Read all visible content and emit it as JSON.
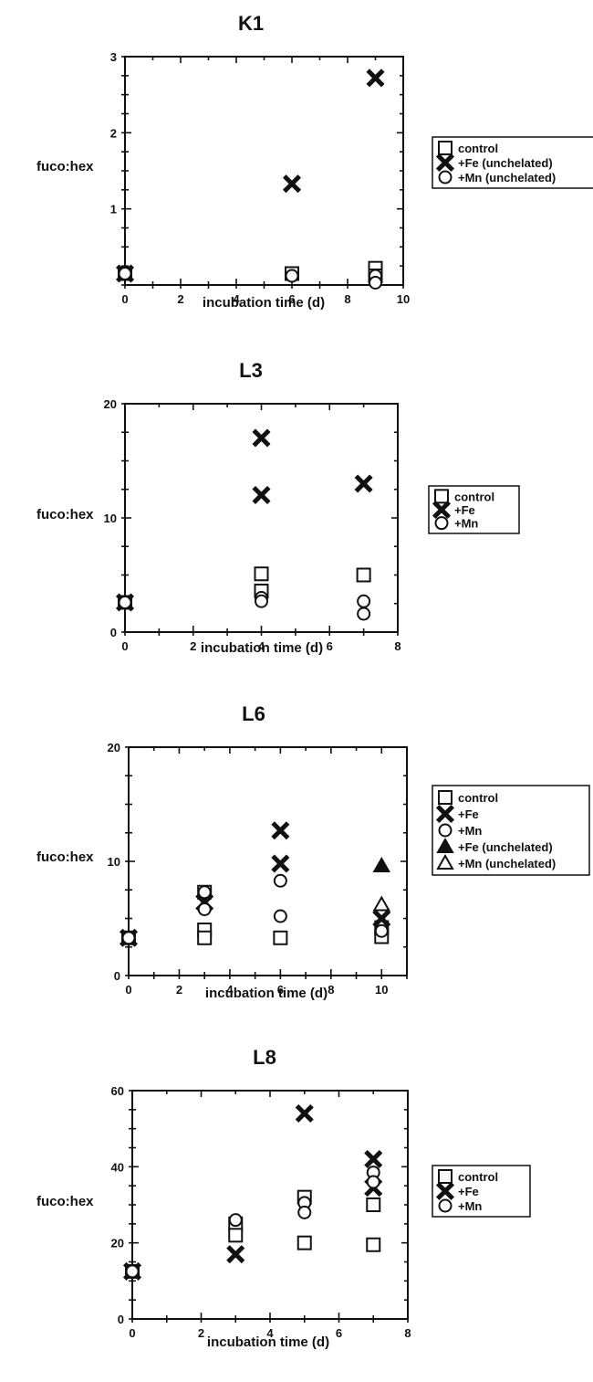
{
  "chart_data": [
    {
      "type": "scatter",
      "title": "K1",
      "xlabel": "incubation time (d)",
      "ylabel": "fuco:hex",
      "xlim": [
        0,
        10
      ],
      "ylim": [
        0,
        3
      ],
      "xticks": [
        0,
        2,
        4,
        6,
        8,
        10
      ],
      "yticks": [
        1,
        2,
        3
      ],
      "series": [
        {
          "name": "control",
          "marker": "square",
          "points": [
            [
              0,
              0.15
            ],
            [
              6,
              0.15
            ],
            [
              9,
              0.22
            ],
            [
              9,
              0.12
            ]
          ]
        },
        {
          "name": "+Fe (unchelated)",
          "marker": "x",
          "points": [
            [
              0,
              0.15
            ],
            [
              6,
              1.33
            ],
            [
              9,
              2.72
            ]
          ]
        },
        {
          "name": "+Mn (unchelated)",
          "marker": "circle",
          "points": [
            [
              0,
              0.15
            ],
            [
              6,
              0.12
            ],
            [
              9,
              0.12
            ],
            [
              9,
              0.03
            ]
          ]
        }
      ]
    },
    {
      "type": "scatter",
      "title": "L3",
      "xlabel": "incubation time (d)",
      "ylabel": "fuco:hex",
      "xlim": [
        0,
        8
      ],
      "ylim": [
        0,
        20
      ],
      "xticks": [
        0,
        2,
        4,
        6,
        8
      ],
      "yticks": [
        0,
        10,
        20
      ],
      "series": [
        {
          "name": "control",
          "marker": "square",
          "points": [
            [
              0,
              2.6
            ],
            [
              4,
              5.1
            ],
            [
              4,
              3.6
            ],
            [
              7,
              5.0
            ]
          ]
        },
        {
          "name": "+Fe",
          "marker": "x",
          "points": [
            [
              0,
              2.6
            ],
            [
              4,
              17.0
            ],
            [
              4,
              12.0
            ],
            [
              7,
              13.0
            ]
          ]
        },
        {
          "name": "+Mn",
          "marker": "circle",
          "points": [
            [
              0,
              2.6
            ],
            [
              4,
              3.0
            ],
            [
              4,
              2.7
            ],
            [
              7,
              2.7
            ],
            [
              7,
              1.6
            ]
          ]
        }
      ]
    },
    {
      "type": "scatter",
      "title": "L6",
      "xlabel": "incubation time (d)",
      "ylabel": "fuco:hex",
      "xlim": [
        0,
        11
      ],
      "ylim": [
        0,
        20
      ],
      "xticks": [
        0,
        2,
        4,
        6,
        8,
        10
      ],
      "yticks": [
        0,
        10,
        20
      ],
      "series": [
        {
          "name": "control",
          "marker": "square",
          "points": [
            [
              0,
              3.3
            ],
            [
              3,
              7.3
            ],
            [
              3,
              4.0
            ],
            [
              3,
              3.3
            ],
            [
              6,
              3.3
            ],
            [
              10,
              4.2
            ],
            [
              10,
              3.4
            ]
          ]
        },
        {
          "name": "+Fe",
          "marker": "x",
          "points": [
            [
              0,
              3.3
            ],
            [
              3,
              6.4
            ],
            [
              6,
              12.7
            ],
            [
              6,
              9.8
            ],
            [
              10,
              5.0
            ]
          ]
        },
        {
          "name": "+Mn",
          "marker": "circle",
          "points": [
            [
              0,
              3.3
            ],
            [
              3,
              7.3
            ],
            [
              3,
              5.8
            ],
            [
              6,
              8.3
            ],
            [
              6,
              5.2
            ],
            [
              10,
              3.9
            ]
          ]
        },
        {
          "name": "+Fe (unchelated)",
          "marker": "triangle-filled",
          "points": [
            [
              10,
              9.6
            ]
          ]
        },
        {
          "name": "+Mn (unchelated)",
          "marker": "triangle-open",
          "points": [
            [
              10,
              6.2
            ]
          ]
        }
      ]
    },
    {
      "type": "scatter",
      "title": "L8",
      "xlabel": "incubation time (d)",
      "ylabel": "fuco:hex",
      "xlim": [
        0,
        8
      ],
      "ylim": [
        0,
        60
      ],
      "xticks": [
        0,
        2,
        4,
        6,
        8
      ],
      "yticks": [
        0,
        20,
        40,
        60
      ],
      "series": [
        {
          "name": "control",
          "marker": "square",
          "points": [
            [
              0,
              12.5
            ],
            [
              3,
              25.0
            ],
            [
              3,
              22.0
            ],
            [
              5,
              32.0
            ],
            [
              5,
              20.0
            ],
            [
              7,
              30.0
            ],
            [
              7,
              19.5
            ]
          ]
        },
        {
          "name": "+Fe",
          "marker": "x",
          "points": [
            [
              0,
              12.5
            ],
            [
              3,
              17.0
            ],
            [
              5,
              54.0
            ],
            [
              7,
              42.0
            ],
            [
              7,
              34.5
            ]
          ]
        },
        {
          "name": "+Mn",
          "marker": "circle",
          "points": [
            [
              0,
              12.5
            ],
            [
              3,
              26.0
            ],
            [
              5,
              30.5
            ],
            [
              5,
              28.0
            ],
            [
              7,
              38.5
            ],
            [
              7,
              36.0
            ]
          ]
        }
      ]
    }
  ]
}
